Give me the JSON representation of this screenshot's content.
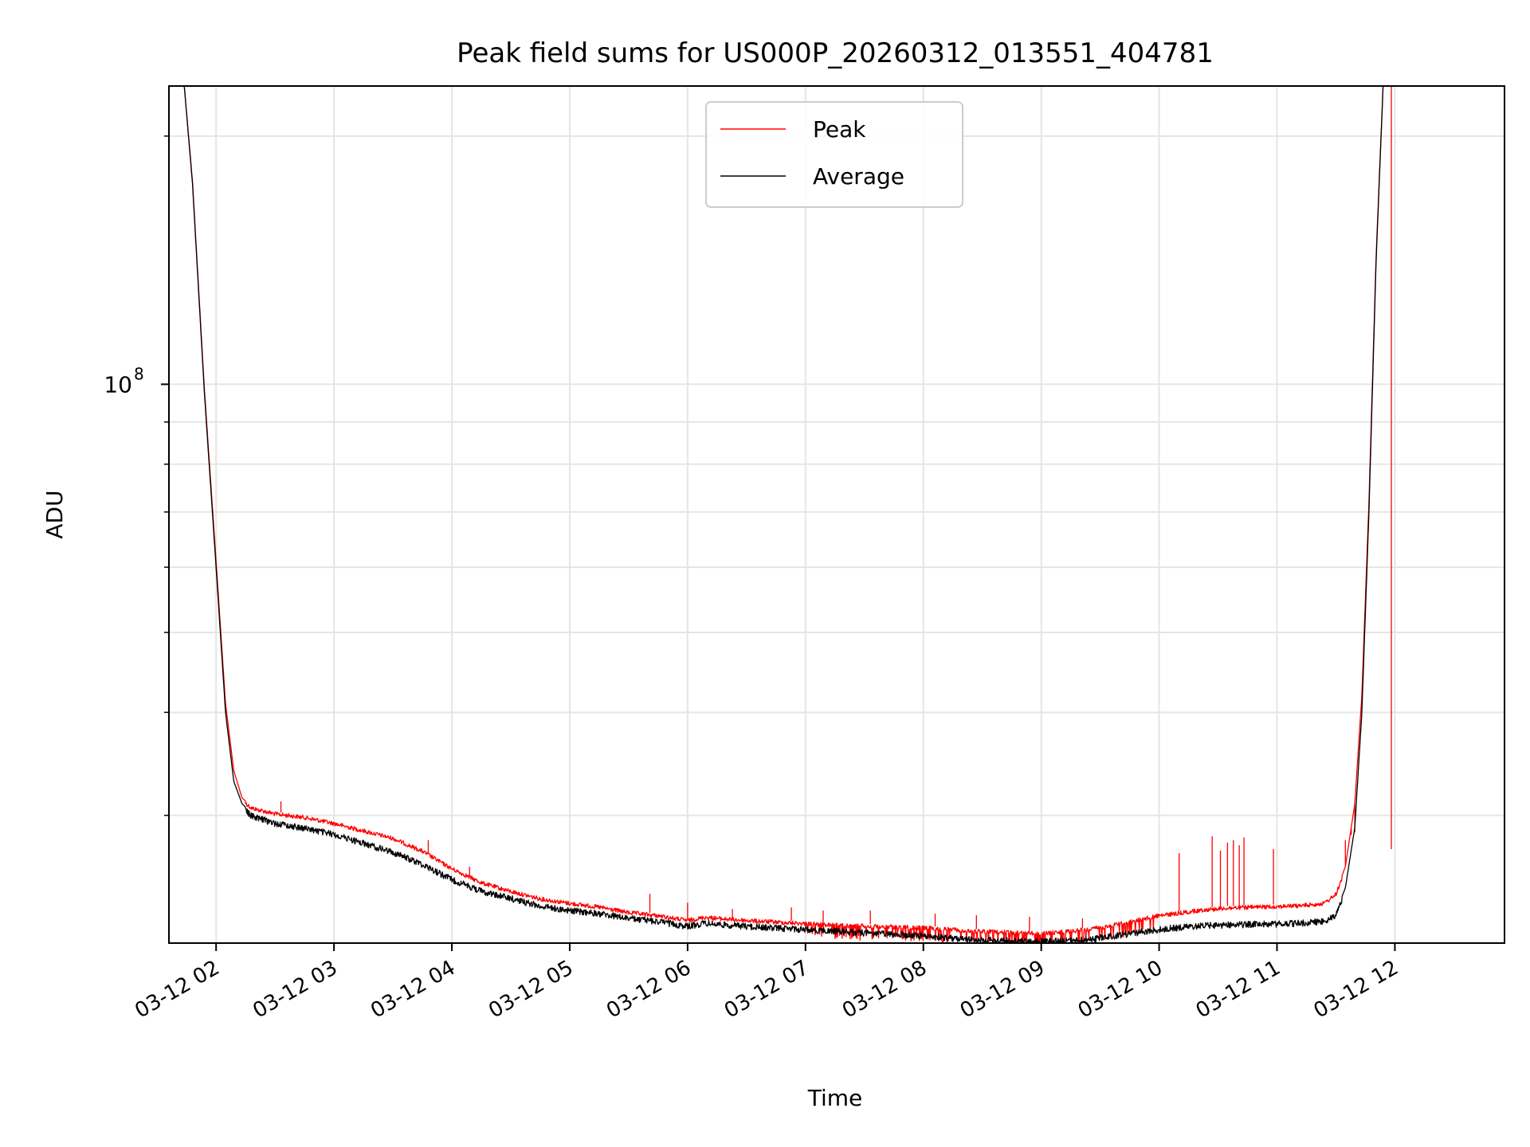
{
  "chart_data": {
    "type": "line",
    "title": "Peak field sums for US000P_20260312_013551_404781",
    "xlabel": "Time",
    "ylabel": "ADU",
    "y_scale": "log",
    "ylim": [
      21000000,
      230000000
    ],
    "xlim_hours": [
      1.6,
      12.93
    ],
    "x_ticks": [
      {
        "hour": 2,
        "label": "03-12 02"
      },
      {
        "hour": 3,
        "label": "03-12 03"
      },
      {
        "hour": 4,
        "label": "03-12 04"
      },
      {
        "hour": 5,
        "label": "03-12 05"
      },
      {
        "hour": 6,
        "label": "03-12 06"
      },
      {
        "hour": 7,
        "label": "03-12 07"
      },
      {
        "hour": 8,
        "label": "03-12 08"
      },
      {
        "hour": 9,
        "label": "03-12 09"
      },
      {
        "hour": 10,
        "label": "03-12 10"
      },
      {
        "hour": 11,
        "label": "03-12 11"
      },
      {
        "hour": 12,
        "label": "03-12 12"
      }
    ],
    "y_major_ticks": [
      {
        "value": 100000000,
        "base": "10",
        "exponent": "8"
      }
    ],
    "y_minor_ticks": [
      30000000,
      40000000,
      50000000,
      60000000,
      70000000,
      80000000,
      90000000,
      200000000
    ],
    "grid": true,
    "legend": {
      "location": "upper-center",
      "entries": [
        "Peak",
        "Average"
      ]
    },
    "series": [
      {
        "name": "Average",
        "color": "#000000",
        "x_hours": [
          1.73,
          1.8,
          1.9,
          2.0,
          2.08,
          2.15,
          2.22,
          2.3,
          2.5,
          2.75,
          3.0,
          3.25,
          3.5,
          3.75,
          4.0,
          4.25,
          4.5,
          4.75,
          5.0,
          5.25,
          5.5,
          5.75,
          6.0,
          6.15,
          6.3,
          6.5,
          6.75,
          7.0,
          7.25,
          7.5,
          7.75,
          8.0,
          8.2,
          8.4,
          8.6,
          8.8,
          9.0,
          9.2,
          9.4,
          9.6,
          9.8,
          10.0,
          10.2,
          10.4,
          10.6,
          10.8,
          11.0,
          11.2,
          11.4,
          11.5,
          11.58,
          11.66,
          11.72,
          11.78,
          11.84,
          11.9
        ],
        "values": [
          230000000,
          175000000,
          98000000,
          60000000,
          40000000,
          33000000,
          31000000,
          30200000,
          29600000,
          29200000,
          28700000,
          28000000,
          27300000,
          26400000,
          25300000,
          24500000,
          24000000,
          23500000,
          23200000,
          23000000,
          22700000,
          22500000,
          22200000,
          22400000,
          22300000,
          22200000,
          22100000,
          22000000,
          21900000,
          21800000,
          21700000,
          21600000,
          21500000,
          21400000,
          21350000,
          21300000,
          21280000,
          21300000,
          21400000,
          21600000,
          21800000,
          22000000,
          22150000,
          22250000,
          22300000,
          22330000,
          22350000,
          22400000,
          22500000,
          22900000,
          24500000,
          29000000,
          40000000,
          70000000,
          140000000,
          230000000
        ]
      },
      {
        "name": "Peak",
        "color": "#ff0000",
        "x_hours": [
          1.73,
          1.8,
          1.9,
          2.0,
          2.08,
          2.15,
          2.22,
          2.3,
          2.5,
          2.75,
          3.0,
          3.25,
          3.5,
          3.75,
          4.0,
          4.25,
          4.5,
          4.75,
          5.0,
          5.25,
          5.5,
          5.75,
          6.0,
          6.15,
          6.3,
          6.5,
          6.75,
          7.0,
          7.25,
          7.5,
          7.75,
          8.0,
          8.2,
          8.4,
          8.6,
          8.8,
          9.0,
          9.2,
          9.4,
          9.6,
          9.8,
          10.0,
          10.2,
          10.4,
          10.6,
          10.8,
          11.0,
          11.2,
          11.4,
          11.5,
          11.58,
          11.66,
          11.72,
          11.78,
          11.84,
          11.9
        ],
        "values": [
          230000000,
          176000000,
          99000000,
          61000000,
          41000000,
          34000000,
          31500000,
          30800000,
          30300000,
          30000000,
          29500000,
          28900000,
          28300000,
          27300000,
          26000000,
          25000000,
          24400000,
          23900000,
          23600000,
          23350000,
          23000000,
          22800000,
          22500000,
          22700000,
          22600000,
          22500000,
          22400000,
          22300000,
          22200000,
          22150000,
          22100000,
          22050000,
          21950000,
          21850000,
          21800000,
          21750000,
          21700000,
          21800000,
          21950000,
          22200000,
          22500000,
          22800000,
          23000000,
          23200000,
          23300000,
          23350000,
          23400000,
          23450000,
          23600000,
          24200000,
          26000000,
          31000000,
          42000000,
          72000000,
          142000000,
          230000000
        ],
        "spike_hours": [
          2.55,
          3.8,
          4.15,
          5.68,
          6.0,
          6.38,
          6.88,
          7.15,
          7.55,
          8.1,
          8.45,
          8.9,
          9.35,
          10.17,
          10.45,
          10.52,
          10.58,
          10.63,
          10.68,
          10.72,
          10.97,
          11.58,
          11.63,
          11.66,
          11.97
        ],
        "spike_values": [
          31200000,
          28000000,
          26000000,
          24100000,
          23500000,
          23100000,
          23200000,
          23000000,
          23000000,
          22800000,
          22700000,
          22600000,
          22500000,
          27000000,
          28300000,
          27200000,
          27800000,
          28000000,
          27600000,
          28200000,
          27300000,
          28000000,
          28400000,
          28600000,
          27300000
        ]
      }
    ]
  }
}
